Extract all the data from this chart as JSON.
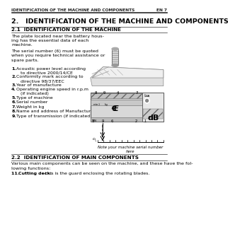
{
  "header_text": "IDENTIFICATION OF THE MACHINE AND COMPONENTS",
  "header_right": "EN 7",
  "title": "2.   IDENTIFICATION OF THE MACHINE AND COMPONENTS",
  "section_21_title": "2.1  IDENTIFICATION OF THE MACHINE",
  "para1": "The plate located near the battery hous-\ning has the essential data of each\nmachine.",
  "para2": "The serial number (6) must be quoted\nwhen you require technical assistance or\nspare parts.",
  "items": [
    {
      "num": "1.",
      "bold": true,
      "text": "Acoustic power level according\n   to directive 2000/14/CE"
    },
    {
      "num": "2.",
      "bold": true,
      "text": "Conformity mark according to\n   directive 98/37/EEC"
    },
    {
      "num": "3.",
      "bold": true,
      "text": "Year of manufacture"
    },
    {
      "num": "4.",
      "bold": true,
      "text": "Operating engine speed in r.p.m\n   (if indicated)"
    },
    {
      "num": "5.",
      "bold": true,
      "text": "Type of machine"
    },
    {
      "num": "6.",
      "bold": true,
      "text": "Serial number"
    },
    {
      "num": "7.",
      "bold": true,
      "text": "Weight in kg"
    },
    {
      "num": "8.",
      "bold": true,
      "text": "Name and address of Manufacturer"
    },
    {
      "num": "9.",
      "bold": true,
      "text": "Type of transmission (if indicated)"
    }
  ],
  "note_text": "Note your machine serial number\nhere",
  "section_22_title": "2.2  IDENTIFICATION OF MAIN COMPONENTS",
  "para3": "Various main components can be seen on the machine, and these have the fol-\nlowing functions:",
  "item11_bold": "Cutting deck:",
  "item11_rest": " this is the guard enclosing the rotating blades.",
  "bg_color": "#ffffff"
}
